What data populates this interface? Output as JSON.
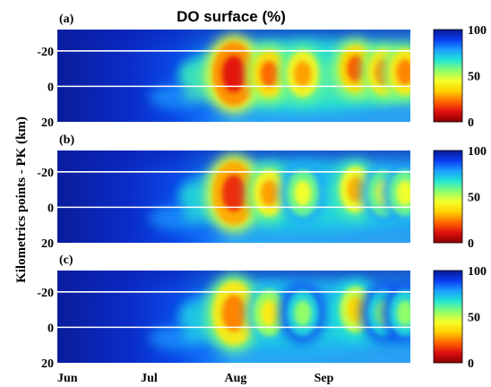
{
  "title": "DO surface (%)",
  "ylabel": "Kilometrics points - PK (km)",
  "colorscale": {
    "min": 0,
    "max": 100,
    "ticks": [
      {
        "value": 100,
        "label": "100"
      },
      {
        "value": 50,
        "label": "50"
      },
      {
        "value": 0,
        "label": "0"
      }
    ],
    "colors": [
      "#8a0000",
      "#e01010",
      "#ff6a00",
      "#ffd200",
      "#f6ff2a",
      "#8cff6e",
      "#24e6d2",
      "#1aa0ff",
      "#0a3cf0",
      "#0a1896"
    ]
  },
  "chart_data": [
    {
      "type": "heatmap",
      "panel_label": "(a)",
      "xlabel": "",
      "ylabel": "Kilometrics points - PK (km)",
      "x_range": [
        "Jun",
        "end of Sep"
      ],
      "x_ticks": [
        "Jun",
        "Jul",
        "Aug",
        "Sep"
      ],
      "y_range": [
        -32,
        20
      ],
      "y_ticks": [
        -20,
        0,
        20
      ],
      "y_reversed": true,
      "reference_lines_y": [
        -20,
        0
      ],
      "value": "DO surface (%)",
      "minimum_blobs": [
        {
          "x": "early Aug",
          "y": -7,
          "min_value": 12
        },
        {
          "x": "mid Aug",
          "y": -7,
          "min_value": 22
        },
        {
          "x": "late Aug",
          "y": -7,
          "min_value": 28
        },
        {
          "x": "early Sep",
          "y": -10,
          "min_value": 20
        },
        {
          "x": "mid Sep",
          "y": -8,
          "min_value": 25
        },
        {
          "x": "late Sep",
          "y": -8,
          "min_value": 25
        }
      ]
    },
    {
      "type": "heatmap",
      "panel_label": "(b)",
      "x_range": [
        "Jun",
        "end of Sep"
      ],
      "x_ticks": [
        "Jun",
        "Jul",
        "Aug",
        "Sep"
      ],
      "y_range": [
        -32,
        20
      ],
      "y_ticks": [
        -20,
        0,
        20
      ],
      "y_reversed": true,
      "reference_lines_y": [
        -20,
        0
      ],
      "value": "DO surface (%)",
      "minimum_blobs": [
        {
          "x": "early Aug",
          "y": -8,
          "min_value": 15
        },
        {
          "x": "mid Aug",
          "y": -8,
          "min_value": 28
        },
        {
          "x": "late Aug",
          "y": -8,
          "min_value": 45
        },
        {
          "x": "early Sep",
          "y": -10,
          "min_value": 30
        },
        {
          "x": "mid Sep",
          "y": -8,
          "min_value": 45
        },
        {
          "x": "late Sep",
          "y": -8,
          "min_value": 45
        }
      ]
    },
    {
      "type": "heatmap",
      "panel_label": "(c)",
      "x_range": [
        "Jun",
        "end of Sep"
      ],
      "x_ticks": [
        "Jun",
        "Jul",
        "Aug",
        "Sep"
      ],
      "y_range": [
        -32,
        20
      ],
      "y_ticks": [
        -20,
        0,
        20
      ],
      "y_reversed": true,
      "reference_lines_y": [
        -20,
        0
      ],
      "value": "DO surface (%)",
      "minimum_blobs": [
        {
          "x": "early Aug",
          "y": -8,
          "min_value": 25
        },
        {
          "x": "mid Aug",
          "y": -8,
          "min_value": 40
        },
        {
          "x": "late Aug",
          "y": -8,
          "min_value": 55
        },
        {
          "x": "early Sep",
          "y": -10,
          "min_value": 35
        },
        {
          "x": "mid Sep",
          "y": -8,
          "min_value": 55
        },
        {
          "x": "late Sep",
          "y": -8,
          "min_value": 55
        }
      ]
    }
  ]
}
